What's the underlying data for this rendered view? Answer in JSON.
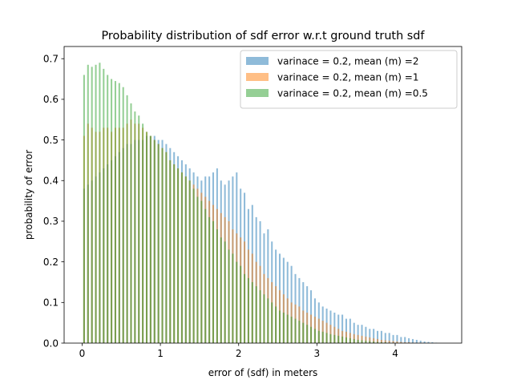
{
  "chart_data": {
    "type": "bar",
    "title": "Probability distribution of sdf error w.r.t ground truth sdf",
    "xlabel": "error of (sdf) in meters",
    "ylabel": "probability of error",
    "xlim": [
      -0.23,
      4.85
    ],
    "ylim": [
      0,
      0.73
    ],
    "xticks": [
      "0",
      "1",
      "2",
      "3",
      "4"
    ],
    "yticks": [
      "0.0",
      "0.1",
      "0.2",
      "0.3",
      "0.4",
      "0.5",
      "0.6",
      "0.7"
    ],
    "bin_width": 0.05,
    "bin_start": 0.025,
    "grid": false,
    "legend_position": "top-right",
    "series": [
      {
        "name": "varinace = 0.2, mean (m) =2",
        "color": "#1f77b4",
        "alpha": 0.5,
        "values": [
          0.38,
          0.39,
          0.4,
          0.41,
          0.42,
          0.43,
          0.44,
          0.45,
          0.46,
          0.47,
          0.48,
          0.49,
          0.49,
          0.5,
          0.5,
          0.5,
          0.51,
          0.51,
          0.51,
          0.5,
          0.5,
          0.49,
          0.48,
          0.47,
          0.46,
          0.45,
          0.44,
          0.43,
          0.42,
          0.41,
          0.4,
          0.41,
          0.41,
          0.42,
          0.43,
          0.4,
          0.39,
          0.4,
          0.41,
          0.42,
          0.38,
          0.37,
          0.33,
          0.34,
          0.31,
          0.3,
          0.27,
          0.28,
          0.25,
          0.23,
          0.22,
          0.21,
          0.2,
          0.19,
          0.17,
          0.16,
          0.15,
          0.14,
          0.13,
          0.11,
          0.1,
          0.09,
          0.085,
          0.08,
          0.075,
          0.07,
          0.07,
          0.06,
          0.06,
          0.05,
          0.045,
          0.045,
          0.04,
          0.035,
          0.035,
          0.03,
          0.03,
          0.025,
          0.025,
          0.02,
          0.02,
          0.015,
          0.015,
          0.012,
          0.01,
          0.008,
          0.006,
          0.004,
          0.003,
          0.002,
          0.001
        ]
      },
      {
        "name": "varinace = 0.2, mean (m) =1",
        "color": "#ff7f0e",
        "alpha": 0.5,
        "values": [
          0.51,
          0.54,
          0.53,
          0.52,
          0.52,
          0.53,
          0.53,
          0.52,
          0.53,
          0.53,
          0.53,
          0.54,
          0.55,
          0.54,
          0.54,
          0.53,
          0.52,
          0.51,
          0.5,
          0.49,
          0.48,
          0.47,
          0.45,
          0.44,
          0.43,
          0.42,
          0.41,
          0.4,
          0.39,
          0.38,
          0.37,
          0.36,
          0.35,
          0.34,
          0.33,
          0.32,
          0.31,
          0.3,
          0.28,
          0.27,
          0.26,
          0.25,
          0.23,
          0.22,
          0.2,
          0.19,
          0.17,
          0.16,
          0.15,
          0.14,
          0.13,
          0.12,
          0.11,
          0.1,
          0.095,
          0.09,
          0.08,
          0.075,
          0.07,
          0.065,
          0.06,
          0.055,
          0.05,
          0.045,
          0.04,
          0.035,
          0.03,
          0.028,
          0.025,
          0.022,
          0.02,
          0.018,
          0.016,
          0.014,
          0.012,
          0.01,
          0.008,
          0.007,
          0.006,
          0.005,
          0.004,
          0.003,
          0.002,
          0.002,
          0.001,
          0.001,
          0.001,
          0.0,
          0.0,
          0.0,
          0.0
        ]
      },
      {
        "name": "varinace = 0.2, mean (m) =0.5",
        "color": "#2ca02c",
        "alpha": 0.5,
        "values": [
          0.66,
          0.685,
          0.68,
          0.685,
          0.69,
          0.675,
          0.66,
          0.65,
          0.645,
          0.64,
          0.63,
          0.61,
          0.59,
          0.57,
          0.56,
          0.54,
          0.52,
          0.51,
          0.5,
          0.49,
          0.48,
          0.47,
          0.45,
          0.44,
          0.43,
          0.42,
          0.41,
          0.4,
          0.38,
          0.36,
          0.35,
          0.33,
          0.31,
          0.3,
          0.28,
          0.26,
          0.25,
          0.23,
          0.22,
          0.2,
          0.19,
          0.17,
          0.16,
          0.15,
          0.14,
          0.13,
          0.12,
          0.11,
          0.1,
          0.09,
          0.08,
          0.075,
          0.07,
          0.065,
          0.06,
          0.055,
          0.05,
          0.045,
          0.04,
          0.035,
          0.03,
          0.028,
          0.025,
          0.022,
          0.02,
          0.018,
          0.016,
          0.014,
          0.012,
          0.01,
          0.008,
          0.007,
          0.006,
          0.005,
          0.004,
          0.003,
          0.002,
          0.002,
          0.001,
          0.001,
          0.001,
          0.0,
          0.0,
          0.0,
          0.0,
          0.0,
          0.0,
          0.0,
          0.0,
          0.0,
          0.0
        ]
      }
    ]
  }
}
